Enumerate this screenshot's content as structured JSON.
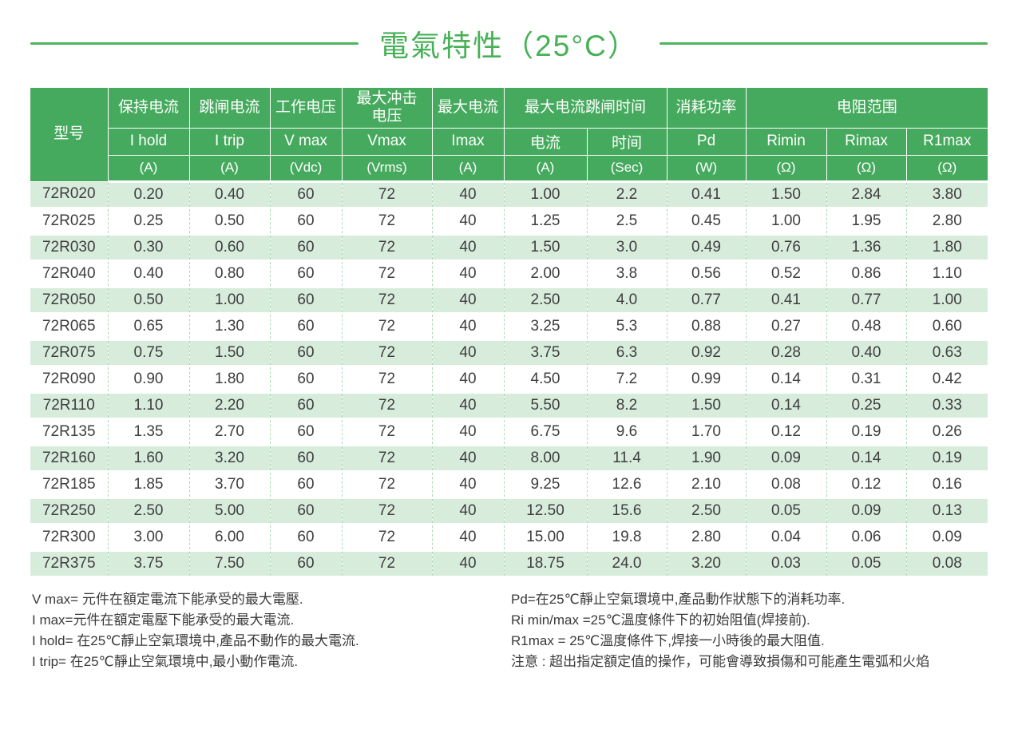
{
  "title": "電氣特性（25°C）",
  "colors": {
    "title_green": "#46b156",
    "header_green": "#46aa5e",
    "row_alt_green": "#d8ecdc",
    "divider_dash_green": "#a9d8b3",
    "data_text": "#3e3e3e"
  },
  "table": {
    "model_header": "型号",
    "groups": [
      {
        "label": "保持电流",
        "span": 1
      },
      {
        "label": "跳闸电流",
        "span": 1
      },
      {
        "label": "工作电压",
        "span": 1
      },
      {
        "label": "最大冲击\n电压",
        "span": 1
      },
      {
        "label": "最大电流",
        "span": 1
      },
      {
        "label": "最大电流跳闸时间",
        "span": 2
      },
      {
        "label": "消耗功率",
        "span": 1
      },
      {
        "label": "电阻范围",
        "span": 3
      }
    ],
    "symbols": [
      "I hold",
      "I trip",
      "V max",
      "Vmax",
      "Imax",
      "电流",
      "时间",
      "Pd",
      "Rimin",
      "Rimax",
      "R1max"
    ],
    "units": [
      "(A)",
      "(A)",
      "(Vdc)",
      "(Vrms)",
      "(A)",
      "(A)",
      "(Sec)",
      "(W)",
      "(Ω)",
      "(Ω)",
      "(Ω)"
    ],
    "rows": [
      [
        "72R020",
        "0.20",
        "0.40",
        "60",
        "72",
        "40",
        "1.00",
        "2.2",
        "0.41",
        "1.50",
        "2.84",
        "3.80"
      ],
      [
        "72R025",
        "0.25",
        "0.50",
        "60",
        "72",
        "40",
        "1.25",
        "2.5",
        "0.45",
        "1.00",
        "1.95",
        "2.80"
      ],
      [
        "72R030",
        "0.30",
        "0.60",
        "60",
        "72",
        "40",
        "1.50",
        "3.0",
        "0.49",
        "0.76",
        "1.36",
        "1.80"
      ],
      [
        "72R040",
        "0.40",
        "0.80",
        "60",
        "72",
        "40",
        "2.00",
        "3.8",
        "0.56",
        "0.52",
        "0.86",
        "1.10"
      ],
      [
        "72R050",
        "0.50",
        "1.00",
        "60",
        "72",
        "40",
        "2.50",
        "4.0",
        "0.77",
        "0.41",
        "0.77",
        "1.00"
      ],
      [
        "72R065",
        "0.65",
        "1.30",
        "60",
        "72",
        "40",
        "3.25",
        "5.3",
        "0.88",
        "0.27",
        "0.48",
        "0.60"
      ],
      [
        "72R075",
        "0.75",
        "1.50",
        "60",
        "72",
        "40",
        "3.75",
        "6.3",
        "0.92",
        "0.28",
        "0.40",
        "0.63"
      ],
      [
        "72R090",
        "0.90",
        "1.80",
        "60",
        "72",
        "40",
        "4.50",
        "7.2",
        "0.99",
        "0.14",
        "0.31",
        "0.42"
      ],
      [
        "72R110",
        "1.10",
        "2.20",
        "60",
        "72",
        "40",
        "5.50",
        "8.2",
        "1.50",
        "0.14",
        "0.25",
        "0.33"
      ],
      [
        "72R135",
        "1.35",
        "2.70",
        "60",
        "72",
        "40",
        "6.75",
        "9.6",
        "1.70",
        "0.12",
        "0.19",
        "0.26"
      ],
      [
        "72R160",
        "1.60",
        "3.20",
        "60",
        "72",
        "40",
        "8.00",
        "11.4",
        "1.90",
        "0.09",
        "0.14",
        "0.19"
      ],
      [
        "72R185",
        "1.85",
        "3.70",
        "60",
        "72",
        "40",
        "9.25",
        "12.6",
        "2.10",
        "0.08",
        "0.12",
        "0.16"
      ],
      [
        "72R250",
        "2.50",
        "5.00",
        "60",
        "72",
        "40",
        "12.50",
        "15.6",
        "2.50",
        "0.05",
        "0.09",
        "0.13"
      ],
      [
        "72R300",
        "3.00",
        "6.00",
        "60",
        "72",
        "40",
        "15.00",
        "19.8",
        "2.80",
        "0.04",
        "0.06",
        "0.09"
      ],
      [
        "72R375",
        "3.75",
        "7.50",
        "60",
        "72",
        "40",
        "18.75",
        "24.0",
        "3.20",
        "0.03",
        "0.05",
        "0.08"
      ]
    ]
  },
  "footnotes": {
    "left": [
      "V max= 元件在額定電流下能承受的最大電壓.",
      "I max=元件在額定電壓下能承受的最大電流.",
      "I hold= 在25℃靜止空氣環境中,產品不動作的最大電流.",
      "I trip= 在25℃靜止空氣環境中,最小動作電流."
    ],
    "right": [
      "Pd=在25℃靜止空氣環境中,產品動作狀態下的消耗功率.",
      "Ri min/max  =25℃溫度條件下的初始阻值(焊接前).",
      "R1max  = 25℃溫度條件下,焊接一小時後的最大阻值.",
      "注意 : 超出指定額定值的操作，可能會導致損傷和可能產生電弧和火焰"
    ]
  }
}
